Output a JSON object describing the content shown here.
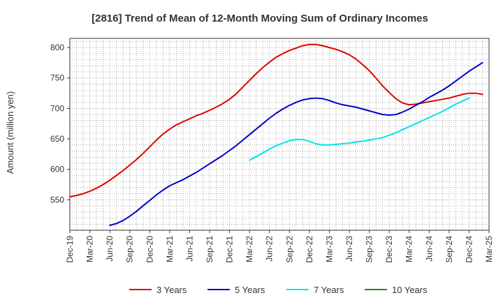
{
  "chart_data": {
    "type": "line",
    "title": "[2816]  Trend of Mean of 12-Month Moving Sum of Ordinary Incomes",
    "xlabel": "",
    "ylabel": "Amount (million yen)",
    "ylim": [
      500,
      815
    ],
    "yticks": [
      550,
      600,
      650,
      700,
      750,
      800
    ],
    "x_tick_labels": [
      "Dec-19",
      "Mar-20",
      "Jun-20",
      "Sep-20",
      "Dec-20",
      "Mar-21",
      "Jun-21",
      "Sep-21",
      "Dec-21",
      "Mar-22",
      "Jun-22",
      "Sep-22",
      "Dec-22",
      "Mar-23",
      "Jun-23",
      "Sep-23",
      "Dec-23",
      "Mar-24",
      "Jun-24",
      "Sep-24",
      "Dec-24",
      "Mar-25"
    ],
    "grid": true,
    "legend_position": "bottom",
    "series": [
      {
        "name": "3 Years",
        "color": "#e00000",
        "start_index": 0,
        "values": [
          555,
          557,
          560,
          564,
          569,
          575,
          582,
          590,
          598,
          607,
          616,
          626,
          637,
          648,
          658,
          666,
          673,
          678,
          683,
          688,
          692,
          697,
          702,
          708,
          715,
          724,
          735,
          746,
          757,
          767,
          776,
          784,
          790,
          795,
          799,
          803,
          805,
          805,
          803,
          800,
          797,
          793,
          788,
          781,
          772,
          762,
          750,
          737,
          726,
          716,
          709,
          706,
          707,
          709,
          711,
          713,
          715,
          717,
          720,
          723,
          725,
          725,
          723
        ]
      },
      {
        "name": "5 Years",
        "color": "#0000cc",
        "start_index": 6,
        "values": [
          508,
          511,
          516,
          523,
          531,
          540,
          549,
          558,
          566,
          573,
          578,
          583,
          589,
          595,
          602,
          609,
          616,
          623,
          631,
          639,
          648,
          657,
          666,
          675,
          684,
          692,
          699,
          705,
          710,
          714,
          716,
          717,
          716,
          713,
          709,
          706,
          704,
          702,
          699,
          696,
          693,
          690,
          689,
          690,
          694,
          699,
          705,
          711,
          718,
          724,
          730,
          737,
          745,
          753,
          761,
          768,
          775
        ]
      },
      {
        "name": "7 Years",
        "color": "#00e5e5",
        "start_index": 27,
        "values": [
          615,
          621,
          627,
          633,
          639,
          643,
          647,
          649,
          649,
          646,
          642,
          640,
          640,
          641,
          642,
          643,
          645,
          646,
          648,
          650,
          652,
          656,
          660,
          665,
          670,
          675,
          680,
          685,
          690,
          695,
          701,
          707,
          712,
          717
        ]
      },
      {
        "name": "10 Years",
        "color": "#228b22",
        "start_index": 0,
        "values": []
      }
    ]
  }
}
